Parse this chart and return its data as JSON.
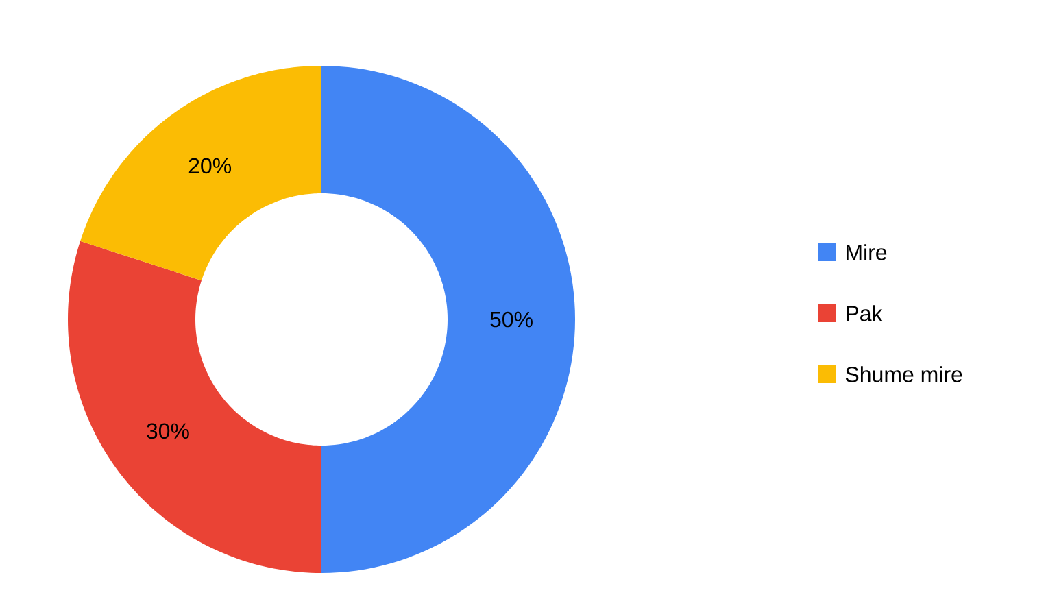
{
  "chart_data": {
    "type": "donut",
    "categories": [
      "Mire",
      "Pak",
      "Shume mire"
    ],
    "values": [
      50,
      30,
      20
    ],
    "colors": [
      "#4285f4",
      "#ea4335",
      "#fbbc04"
    ],
    "value_labels": [
      "50%",
      "30%",
      "20%"
    ],
    "legend": "right"
  }
}
